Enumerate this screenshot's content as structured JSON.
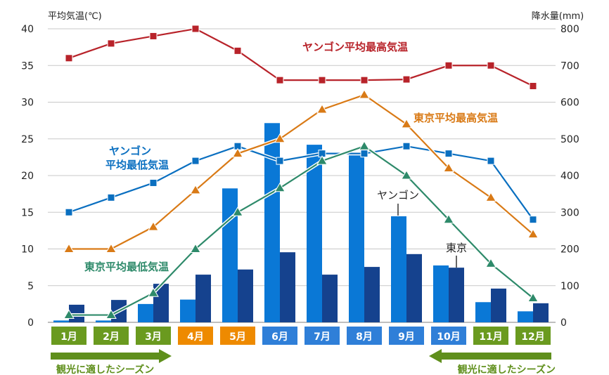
{
  "chart_data": {
    "type": "bar+line",
    "left_axis_label": "平均気温(℃)",
    "right_axis_label": "降水量(mm)",
    "left_ylim": [
      0,
      40
    ],
    "left_ticks": [
      0,
      5,
      10,
      15,
      20,
      25,
      30,
      35,
      40
    ],
    "right_ylim": [
      0,
      800
    ],
    "right_ticks": [
      0,
      100,
      200,
      300,
      400,
      500,
      600,
      700,
      800
    ],
    "grid": true,
    "categories": [
      "1月",
      "2月",
      "3月",
      "4月",
      "5月",
      "6月",
      "7月",
      "8月",
      "9月",
      "10月",
      "11月",
      "12月"
    ],
    "category_colors": [
      "#6a9a1f",
      "#6a9a1f",
      "#6a9a1f",
      "#ee8a00",
      "#ee8a00",
      "#2f7fd8",
      "#2f7fd8",
      "#2f7fd8",
      "#2f7fd8",
      "#2f7fd8",
      "#6a9a1f",
      "#6a9a1f"
    ],
    "bars": [
      {
        "name": "ヤンゴン",
        "axis": "right",
        "color": "#0a78d6",
        "values": [
          5,
          5,
          50,
          62,
          365,
          543,
          484,
          455,
          289,
          155,
          55,
          30
        ]
      },
      {
        "name": "東京",
        "axis": "right",
        "color": "#15428e",
        "values": [
          48,
          61,
          105,
          130,
          144,
          191,
          130,
          151,
          186,
          149,
          92,
          52
        ]
      }
    ],
    "lines": [
      {
        "name": "ヤンゴン平均最高気温",
        "axis": "left",
        "color": "#b8232a",
        "marker": "square",
        "values": [
          36,
          38,
          39,
          40,
          37,
          33,
          33,
          33,
          33.1,
          35,
          35,
          32.2
        ]
      },
      {
        "name": "ヤンゴン\n平均最低気温",
        "axis": "left",
        "color": "#0a6fc0",
        "marker": "square",
        "values": [
          15,
          17,
          19,
          22,
          24,
          22,
          23,
          23,
          24,
          23,
          22,
          14
        ]
      },
      {
        "name": "東京平均最高気温",
        "axis": "left",
        "color": "#d97a16",
        "marker": "triangle",
        "values": [
          10,
          10,
          13,
          18,
          23,
          25,
          29,
          31,
          27,
          21,
          17,
          12
        ]
      },
      {
        "name": "東京平均最低気温",
        "axis": "left",
        "color": "#2e8a6a",
        "marker": "triangle",
        "values": [
          1,
          1,
          4,
          10,
          15,
          18.3,
          22,
          24,
          20,
          14,
          8,
          3.3
        ]
      }
    ],
    "annotations": {
      "yangon_bar_label": "ヤンゴン",
      "tokyo_bar_label": "東京",
      "season_left": "観光に適したシーズン",
      "season_right": "観光に適したシーズン"
    }
  }
}
